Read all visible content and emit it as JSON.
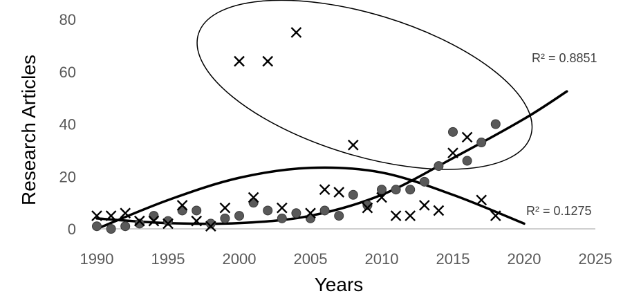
{
  "chart_data": {
    "type": "scatter",
    "title": "",
    "xlabel": "Years",
    "ylabel": "Research Articles",
    "xlim": [
      1990,
      2025
    ],
    "ylim": [
      0,
      80
    ],
    "x_ticks": [
      1990,
      1995,
      2000,
      2005,
      2010,
      2015,
      2020,
      2025
    ],
    "y_ticks": [
      0,
      20,
      40,
      60,
      80
    ],
    "grid": false,
    "legend": "none",
    "series": [
      {
        "marker": "circle",
        "color": "#595959",
        "points": [
          [
            1990,
            1
          ],
          [
            1991,
            0
          ],
          [
            1992,
            1
          ],
          [
            1993,
            2
          ],
          [
            1994,
            5
          ],
          [
            1995,
            3
          ],
          [
            1996,
            7
          ],
          [
            1997,
            7
          ],
          [
            1998,
            2
          ],
          [
            1999,
            4
          ],
          [
            2000,
            5
          ],
          [
            2001,
            10
          ],
          [
            2002,
            7
          ],
          [
            2003,
            4
          ],
          [
            2004,
            6
          ],
          [
            2005,
            4
          ],
          [
            2006,
            7
          ],
          [
            2007,
            5
          ],
          [
            2008,
            13
          ],
          [
            2009,
            9
          ],
          [
            2010,
            15
          ],
          [
            2011,
            15
          ],
          [
            2012,
            15
          ],
          [
            2013,
            18
          ],
          [
            2014,
            24
          ],
          [
            2015,
            37
          ],
          [
            2016,
            26
          ],
          [
            2017,
            33
          ],
          [
            2018,
            40
          ]
        ],
        "trendline": {
          "r2_label": "R² = 0.8851",
          "range": [
            1990,
            2023
          ],
          "knots": [
            [
              1990,
              4
            ],
            [
              1995,
              2.2
            ],
            [
              2000,
              2.2
            ],
            [
              2005,
              5
            ],
            [
              2010,
              13
            ],
            [
              2015,
              27
            ],
            [
              2020,
              42
            ],
            [
              2023,
              52.5
            ]
          ]
        }
      },
      {
        "marker": "x",
        "color": "#000000",
        "points": [
          [
            1990,
            5
          ],
          [
            1991,
            5
          ],
          [
            1992,
            6
          ],
          [
            1993,
            3
          ],
          [
            1994,
            3
          ],
          [
            1995,
            2
          ],
          [
            1996,
            9
          ],
          [
            1997,
            3
          ],
          [
            1998,
            1
          ],
          [
            1999,
            8
          ],
          [
            2000,
            64
          ],
          [
            2001,
            12
          ],
          [
            2002,
            64
          ],
          [
            2003,
            8
          ],
          [
            2004,
            75
          ],
          [
            2005,
            6
          ],
          [
            2006,
            15
          ],
          [
            2007,
            14
          ],
          [
            2008,
            32
          ],
          [
            2009,
            8
          ],
          [
            2010,
            12
          ],
          [
            2011,
            5
          ],
          [
            2012,
            5
          ],
          [
            2013,
            9
          ],
          [
            2014,
            7
          ],
          [
            2015,
            29
          ],
          [
            2016,
            35
          ],
          [
            2017,
            11
          ],
          [
            2018,
            5
          ]
        ],
        "trendline": {
          "r2_label": "R² = 0.1275",
          "range": [
            1990,
            2020
          ],
          "knots": [
            [
              1990,
              0
            ],
            [
              1995,
              11
            ],
            [
              2000,
              19.5
            ],
            [
              2005,
              23.3
            ],
            [
              2010,
              21.5
            ],
            [
              2015,
              13
            ],
            [
              2020,
              2
            ]
          ]
        }
      }
    ],
    "annotations": [
      {
        "type": "ellipse",
        "note": "circled outliers",
        "center": [
          2008.8,
          55
        ],
        "radius_x": 12.2,
        "radius_y": 27,
        "tilt_deg": 17
      }
    ]
  }
}
